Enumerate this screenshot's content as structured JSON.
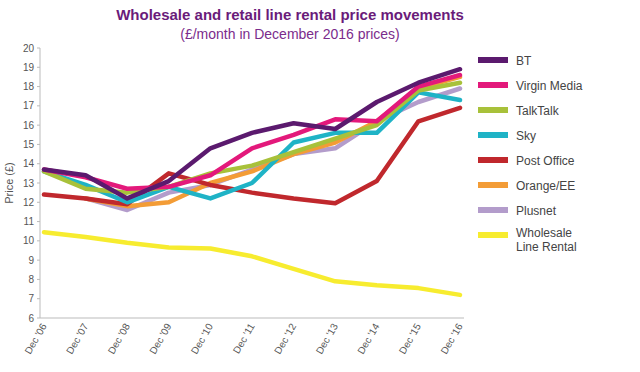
{
  "chart_data": {
    "type": "line",
    "title": "Wholesale and retail line rental price movements",
    "subtitle": "(£/month in December 2016 prices)",
    "y_label": "Price (£)",
    "categories": [
      "Dec '06",
      "Dec '07",
      "Dec '08",
      "Dec '09",
      "Dec '10",
      "Dec '11",
      "Dec '12",
      "Dec '13",
      "Dec '14",
      "Dec '15",
      "Dec '16"
    ],
    "series": [
      {
        "name": "BT",
        "color": "#5b1a6e",
        "values": [
          13.7,
          13.4,
          12.2,
          13.1,
          14.8,
          15.6,
          16.1,
          15.8,
          17.2,
          18.2,
          18.9
        ]
      },
      {
        "name": "Virgin Media",
        "color": "#e3197b",
        "values": [
          13.7,
          13.3,
          12.7,
          12.8,
          13.4,
          14.8,
          15.5,
          16.3,
          16.2,
          18.0,
          18.6
        ]
      },
      {
        "name": "TalkTalk",
        "color": "#a8c13a",
        "values": [
          13.6,
          12.7,
          12.5,
          12.8,
          13.5,
          13.9,
          14.6,
          15.3,
          16.0,
          17.8,
          18.2
        ]
      },
      {
        "name": "Sky",
        "color": "#1fb3c6",
        "values": [
          13.6,
          12.9,
          12.0,
          12.8,
          12.2,
          13.0,
          15.1,
          15.6,
          15.6,
          17.7,
          17.3
        ]
      },
      {
        "name": "Post Office",
        "color": "#c0282d",
        "values": [
          12.4,
          12.2,
          11.9,
          13.5,
          12.9,
          12.5,
          12.2,
          11.95,
          13.1,
          16.2,
          16.9
        ]
      },
      {
        "name": "Orange/EE",
        "color": "#f39c36",
        "values": [
          null,
          12.2,
          11.8,
          12.0,
          13.0,
          13.6,
          14.5,
          15.1,
          16.2,
          17.9,
          18.5
        ]
      },
      {
        "name": "Plusnet",
        "color": "#b39ccb",
        "values": [
          null,
          12.2,
          11.6,
          12.5,
          12.9,
          13.7,
          14.5,
          14.8,
          16.2,
          17.2,
          17.9
        ]
      },
      {
        "name": "Wholesale Line Rental",
        "color": "#f7ec2f",
        "values": [
          10.45,
          10.2,
          9.9,
          9.65,
          9.6,
          9.2,
          8.55,
          7.9,
          7.7,
          7.55,
          7.2
        ]
      }
    ],
    "ylim": [
      6,
      20
    ],
    "yticks": [
      6,
      7,
      8,
      9,
      10,
      11,
      12,
      13,
      14,
      15,
      16,
      17,
      18,
      19,
      20
    ],
    "grid": false,
    "legend": "right"
  }
}
